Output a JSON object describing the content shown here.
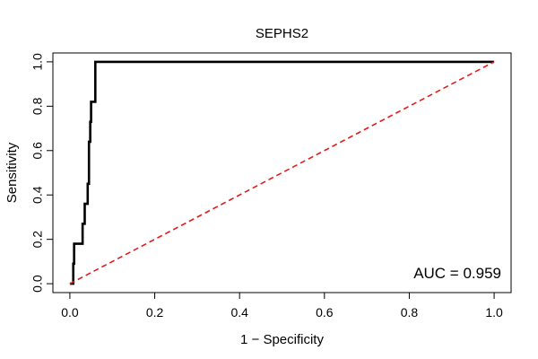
{
  "chart_data": {
    "type": "line",
    "title": "SEPHS2",
    "xlabel": "1 − Specificity",
    "ylabel": "Sensitivity",
    "xlim": [
      0,
      1
    ],
    "ylim": [
      0,
      1
    ],
    "x_ticks": [
      0.0,
      0.2,
      0.4,
      0.6,
      0.8,
      1.0
    ],
    "x_tick_labels": [
      "0.0",
      "0.2",
      "0.4",
      "0.6",
      "0.8",
      "1.0"
    ],
    "y_ticks": [
      0.0,
      0.2,
      0.4,
      0.6,
      0.8,
      1.0
    ],
    "y_tick_labels": [
      "0.0",
      "0.2",
      "0.4",
      "0.6",
      "0.8",
      "1.0"
    ],
    "grid": false,
    "annotation": "AUC = 0.959",
    "series": [
      {
        "color": "#000000",
        "style": "solid",
        "points": [
          [
            0.0,
            0.0
          ],
          [
            0.008,
            0.0
          ],
          [
            0.008,
            0.09
          ],
          [
            0.01,
            0.09
          ],
          [
            0.01,
            0.18
          ],
          [
            0.03,
            0.18
          ],
          [
            0.03,
            0.27
          ],
          [
            0.035,
            0.27
          ],
          [
            0.035,
            0.36
          ],
          [
            0.042,
            0.36
          ],
          [
            0.042,
            0.45
          ],
          [
            0.045,
            0.45
          ],
          [
            0.045,
            0.64
          ],
          [
            0.048,
            0.64
          ],
          [
            0.048,
            0.73
          ],
          [
            0.05,
            0.73
          ],
          [
            0.05,
            0.82
          ],
          [
            0.06,
            0.82
          ],
          [
            0.06,
            1.0
          ],
          [
            1.0,
            1.0
          ]
        ]
      },
      {
        "color": "#e41a1c",
        "style": "dashed",
        "points": [
          [
            0.0,
            0.0
          ],
          [
            1.0,
            1.0
          ]
        ]
      }
    ]
  }
}
